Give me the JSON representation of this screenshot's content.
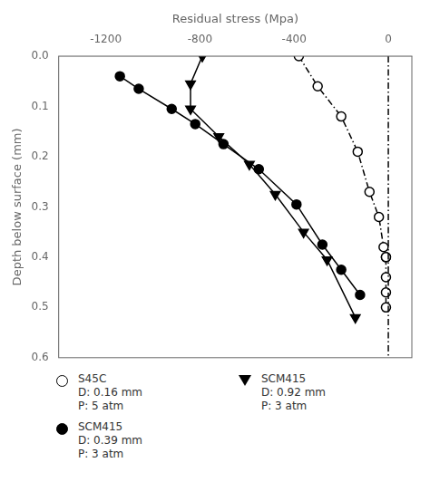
{
  "chart_data": {
    "type": "scatter",
    "x_label": "Residual stress (Mpa)",
    "y_label": "Depth below surface (mm)",
    "xlim": [
      -1400,
      100
    ],
    "ylim": [
      0.6,
      0.0
    ],
    "xticks": [
      -1200,
      -800,
      -400,
      0
    ],
    "yticks": [
      {
        "value": 0.0,
        "label": "0.0"
      },
      0.1,
      0.2,
      0.3,
      0.4,
      0.5,
      0.6
    ],
    "grid": false,
    "reference_line": {
      "x": 0,
      "line_style": "dashdot",
      "color": "black"
    },
    "series": [
      {
        "name": [
          "S45C",
          "D: 0.16 mm",
          "P: 5 atm"
        ],
        "color": "black",
        "marker": "circle_open",
        "line_style": "dashdot",
        "x": [
          -380,
          -300,
          -200,
          -130,
          -80,
          -40,
          -20,
          -10,
          -10,
          -10,
          -10,
          -10
        ],
        "values": [
          0.0,
          0.06,
          0.12,
          0.19,
          0.27,
          0.32,
          0.38,
          0.4,
          0.4,
          0.44,
          0.47,
          0.5
        ]
      },
      {
        "name": [
          "SCM415",
          "D: 0.39 mm",
          "P: 3 atm"
        ],
        "color": "black",
        "marker": "circle",
        "line_style": "solid",
        "x": [
          -1140,
          -1060,
          -920,
          -820,
          -700,
          -550,
          -390,
          -280,
          -200,
          -120
        ],
        "values": [
          0.04,
          0.065,
          0.105,
          0.135,
          0.175,
          0.225,
          0.295,
          0.375,
          0.425,
          0.475
        ]
      },
      {
        "name": [
          "SCM415",
          "D: 0.92 mm",
          "P: 3 atm"
        ],
        "color": "black",
        "marker": "triangle_down",
        "line_style": "solid",
        "x": [
          -790,
          -840,
          -840,
          -720,
          -590,
          -480,
          -360,
          -260,
          -140
        ],
        "values": [
          0.0,
          0.055,
          0.105,
          0.16,
          0.215,
          0.275,
          0.35,
          0.405,
          0.52
        ]
      }
    ]
  }
}
